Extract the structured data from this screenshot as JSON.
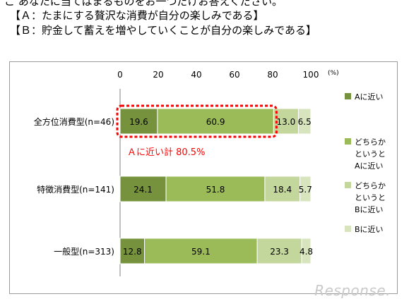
{
  "header": {
    "cutoff_line": "こ あなたに当てはまるものをお一つだけお答えください。",
    "prompt_a": "【Ａ：たまにする贅沢な消費が自分の楽しみである】",
    "prompt_b": "【Ｂ：貯金して蓄えを増やしていくことが自分の楽しみである】"
  },
  "chart_data": {
    "type": "bar",
    "orientation": "horizontal",
    "stacked": true,
    "unit_label": "(%)",
    "xlim": [
      0,
      100
    ],
    "xticks": [
      "0",
      "20",
      "40",
      "60",
      "80",
      "100"
    ],
    "categories": [
      "全方位消費型(n=46)",
      "特徴消費型(n=141)",
      "一般型(n=313)"
    ],
    "series": [
      {
        "name": "Aに近い",
        "color": "#76923c",
        "values": [
          19.6,
          24.1,
          12.8
        ],
        "labels": [
          "19.6",
          "24.1",
          "12.8"
        ]
      },
      {
        "name": "どちらか\nというと\nAに近い",
        "color": "#9bbb59",
        "values": [
          60.9,
          51.8,
          59.1
        ],
        "labels": [
          "60.9",
          "51.8",
          "59.1"
        ]
      },
      {
        "name": "どちらか\nというと\nBに近い",
        "color": "#c3d69b",
        "values": [
          13.0,
          18.4,
          23.3
        ],
        "labels": [
          "13.0",
          "18.4",
          "23.3"
        ]
      },
      {
        "name": "Bに近い",
        "color": "#d7e4bd",
        "values": [
          6.5,
          5.7,
          4.8
        ],
        "labels": [
          "6.5",
          "5.7",
          "4.8"
        ]
      }
    ],
    "annotation": {
      "text": "Ａに近い計 80.5%",
      "category_index": 0,
      "from": 0,
      "to": 80.5,
      "color": "#ff0000"
    },
    "legend_position": "right",
    "grid": false
  },
  "watermark": "Response."
}
